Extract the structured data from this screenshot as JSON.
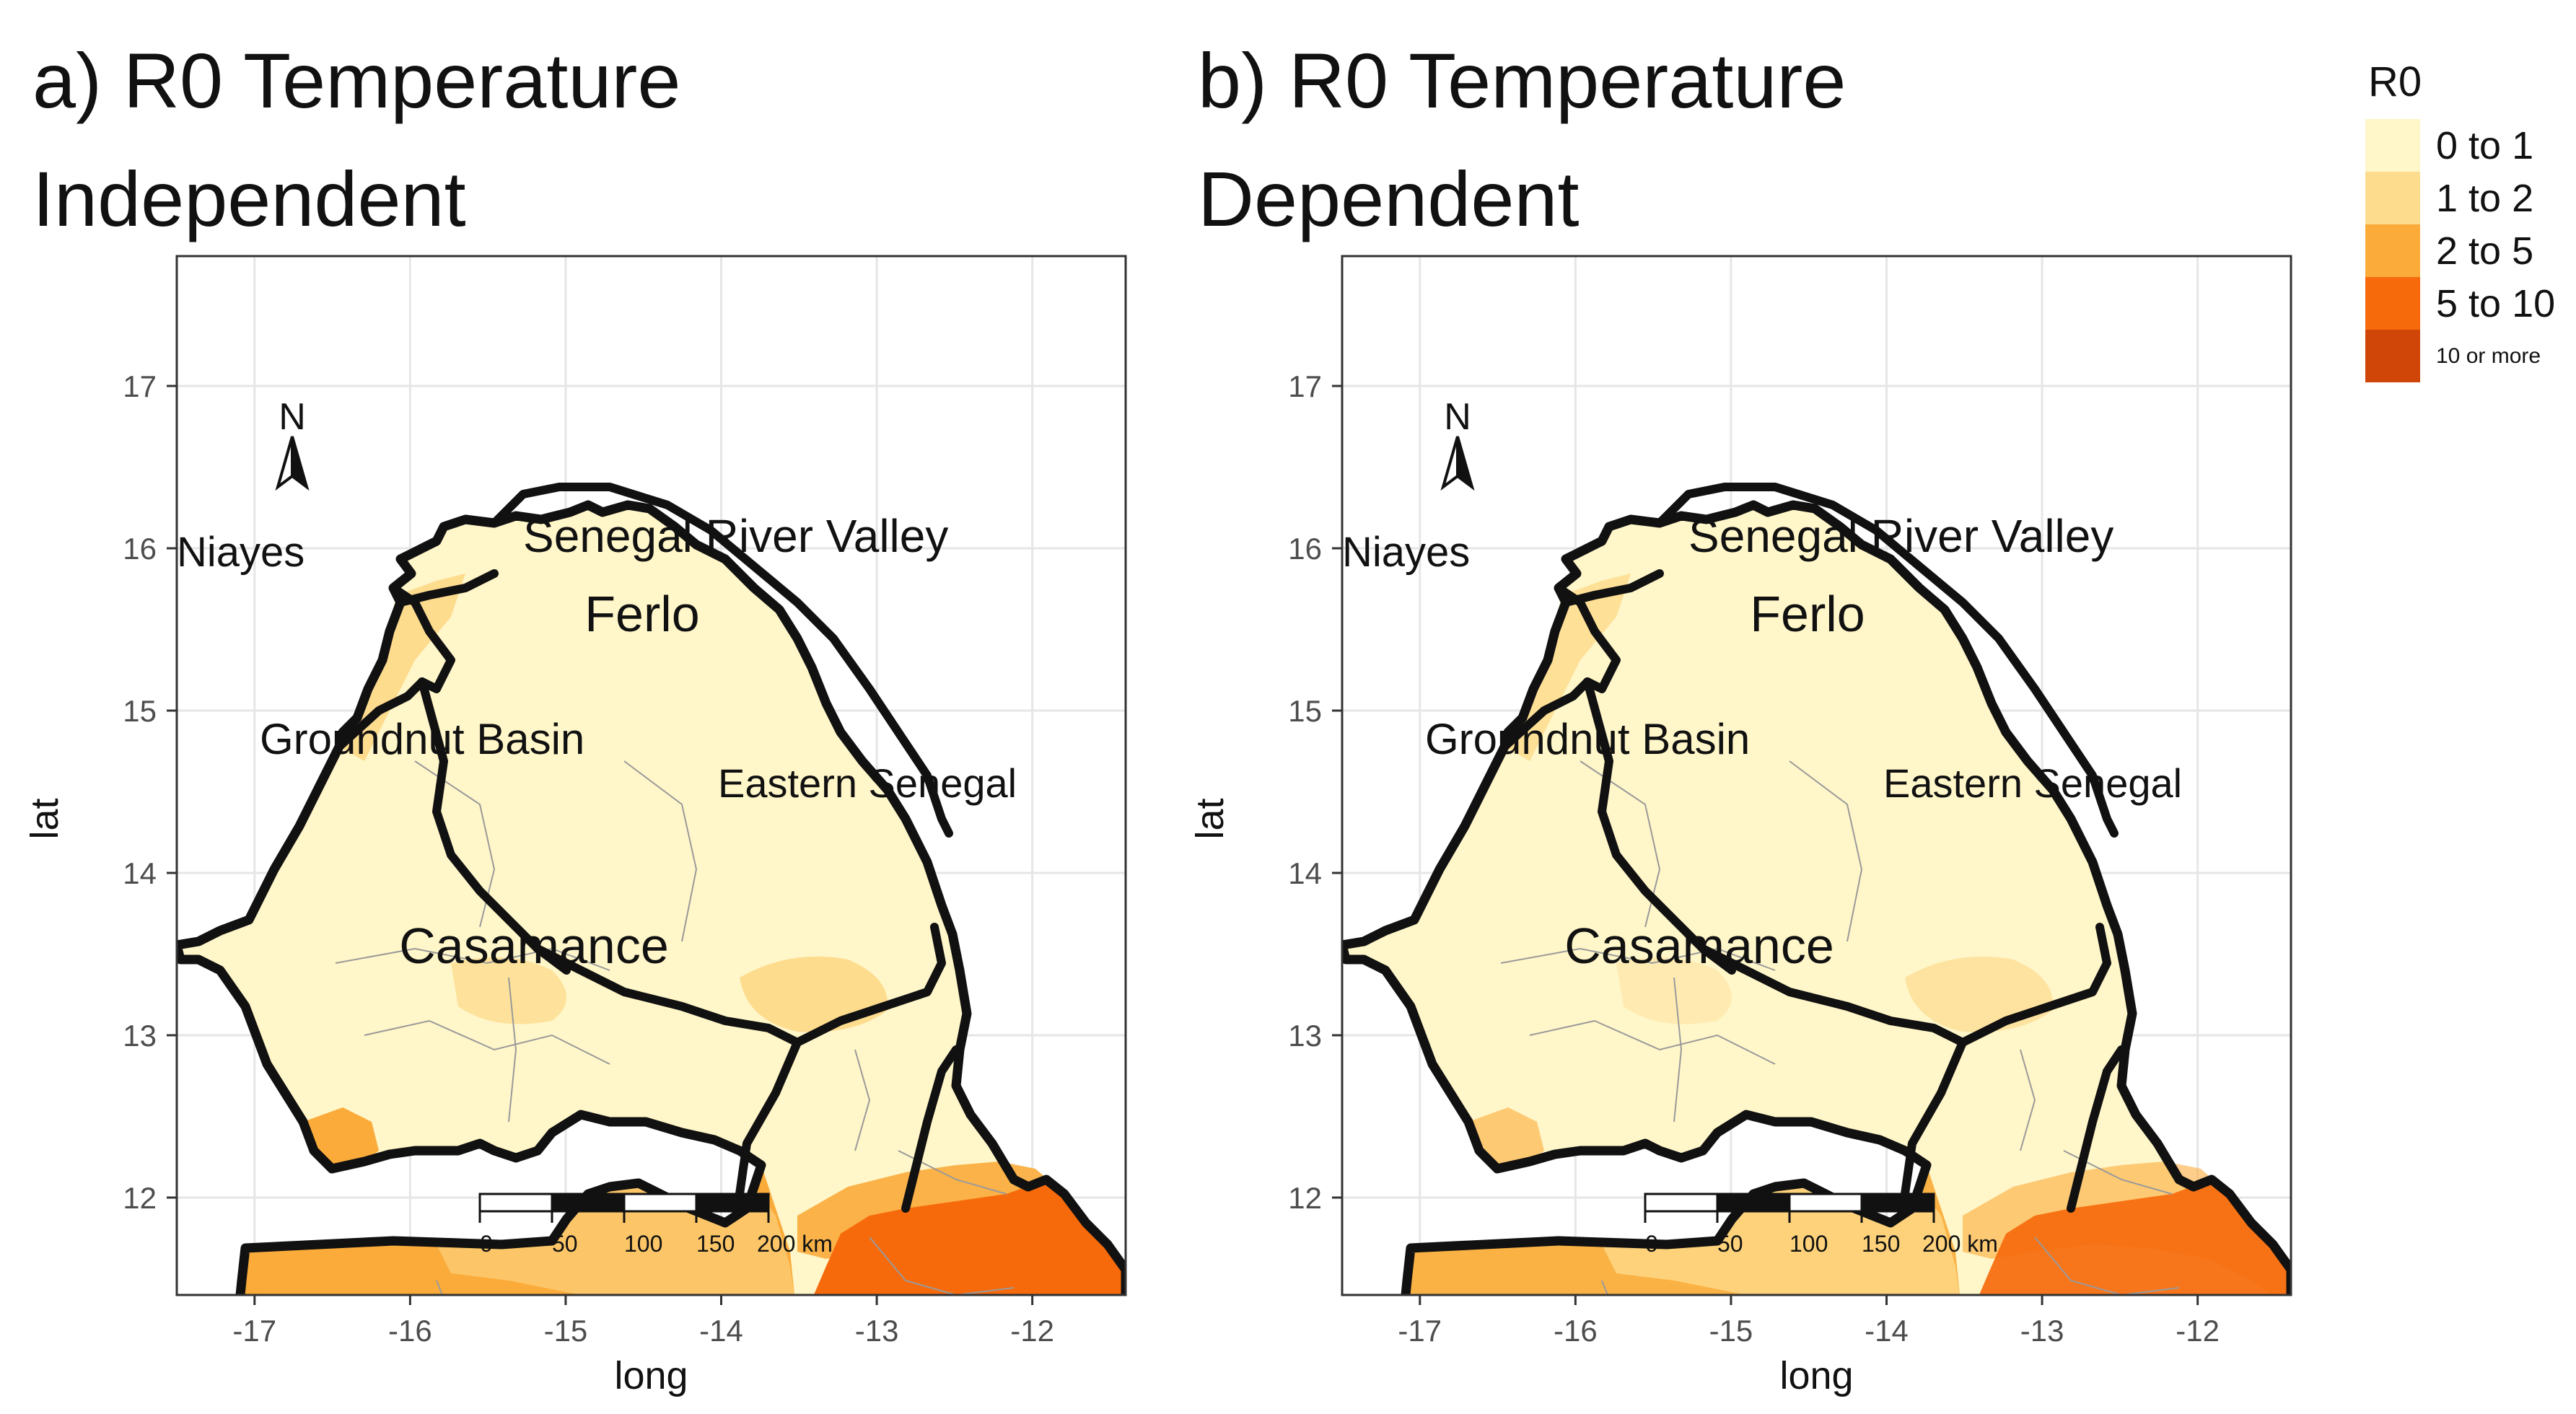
{
  "panels": [
    {
      "id": "a",
      "title_line1": "a) R0 Temperature",
      "title_line2": "Independent",
      "south_east_class": "5 to 10",
      "casamance_class": "2 to 5"
    },
    {
      "id": "b",
      "title_line1": "b) R0 Temperature",
      "title_line2": "Dependent",
      "south_east_class": "5 to 10",
      "casamance_class": "2 to 5"
    }
  ],
  "regions": [
    "Senegal River Valley",
    "Niayes",
    "Ferlo",
    "Groundnut Basin",
    "Eastern Senegal",
    "Casamance"
  ],
  "north_arrow": "N",
  "scale_bar": {
    "ticks": [
      "0",
      "50",
      "100",
      "150",
      "200 km"
    ]
  },
  "axes": {
    "xlabel": "long",
    "ylabel": "lat",
    "xticks": [
      "-17",
      "-16",
      "-15",
      "-14",
      "-13",
      "-12"
    ],
    "yticks": [
      "17",
      "16",
      "15",
      "14",
      "13",
      "12"
    ],
    "xlim": [
      -17.5,
      -11.4
    ],
    "ylim": [
      11.4,
      17.8
    ]
  },
  "legend": {
    "title": "R0",
    "items": [
      {
        "label": "0 to 1",
        "color": "#FFF6C9"
      },
      {
        "label": "1 to 2",
        "color": "#FEDC8E"
      },
      {
        "label": "2 to 5",
        "color": "#FBAB3A"
      },
      {
        "label": "5 to 10",
        "color": "#F66A0C"
      },
      {
        "label": "10 or more",
        "color": "#CF4608"
      }
    ]
  }
}
